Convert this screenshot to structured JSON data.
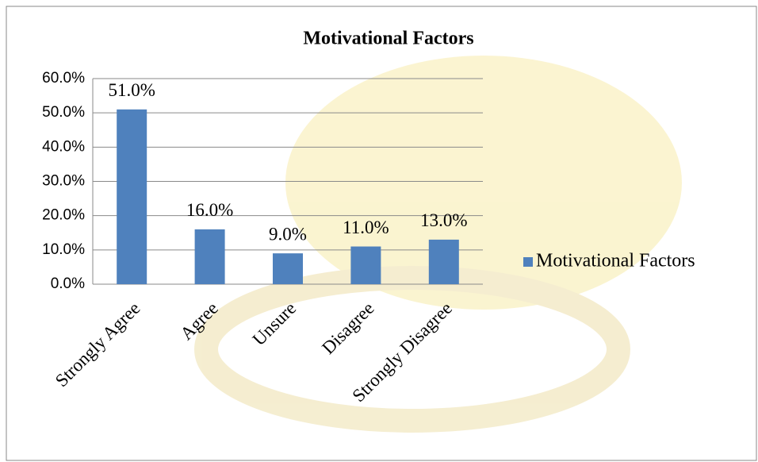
{
  "chart_data": {
    "type": "bar",
    "title": "Motivational Factors",
    "categories": [
      "Strongly Agree",
      "Agree",
      "Unsure",
      "Disagree",
      "Strongly Disagree"
    ],
    "series": [
      {
        "name": "Motivational Factors",
        "color": "#4f81bd",
        "values": [
          51,
          16,
          9,
          11,
          13
        ],
        "value_labels": [
          "51.0%",
          "16.0%",
          "9.0%",
          "11.0%",
          "13.0%"
        ]
      }
    ],
    "ylim": [
      0,
      60
    ],
    "yticks": [
      {
        "value": 0,
        "label": "0.0%"
      },
      {
        "value": 10,
        "label": "10.0%"
      },
      {
        "value": 20,
        "label": "20.0%"
      },
      {
        "value": 30,
        "label": "30.0%"
      },
      {
        "value": 40,
        "label": "40.0%"
      },
      {
        "value": 50,
        "label": "50.0%"
      },
      {
        "value": 60,
        "label": "60.0%"
      }
    ],
    "grid": true,
    "legend": "right"
  }
}
